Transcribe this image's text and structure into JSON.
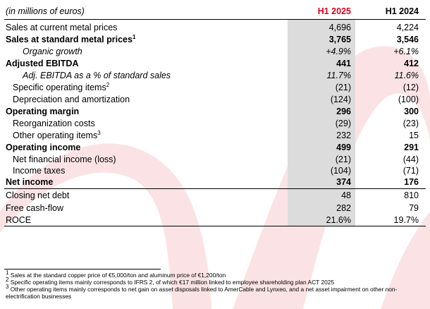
{
  "header": {
    "unit_label": "(in millions of euros)",
    "col1": "H1 2025",
    "col2": "H1 2024"
  },
  "rows": [
    {
      "label": "Sales at current metal prices",
      "sup": "",
      "v1": "4,696",
      "v2": "4,224"
    },
    {
      "label": "Sales at standard metal prices",
      "sup": "1",
      "v1": "3,765",
      "v2": "3,546"
    },
    {
      "label": "Organic growth",
      "sup": "",
      "v1": "+4.9%",
      "v2": "+6.1%"
    },
    {
      "label": "Adjusted EBITDA",
      "sup": "",
      "v1": "441",
      "v2": "412"
    },
    {
      "label": "Adj. EBITDA as a % of standard sales",
      "sup": "",
      "v1": "11.7%",
      "v2": "11.6%"
    },
    {
      "label": "Specific operating items",
      "sup": "2",
      "v1": "(21)",
      "v2": "(12)"
    },
    {
      "label": "Depreciation and amortization",
      "sup": "",
      "v1": "(124)",
      "v2": "(100)"
    },
    {
      "label": "Operating margin",
      "sup": "",
      "v1": "296",
      "v2": "300"
    },
    {
      "label": "Reorganization costs",
      "sup": "",
      "v1": "(29)",
      "v2": "(23)"
    },
    {
      "label": "Other operating items",
      "sup": "3",
      "v1": "232",
      "v2": "15"
    },
    {
      "label": "Operating income",
      "sup": "",
      "v1": "499",
      "v2": "291"
    },
    {
      "label": "Net financial income (loss)",
      "sup": "",
      "v1": "(21)",
      "v2": "(44)"
    },
    {
      "label": "Income taxes",
      "sup": "",
      "v1": "(104)",
      "v2": "(71)"
    },
    {
      "label": "Net income",
      "sup": "",
      "v1": "374",
      "v2": "176"
    },
    {
      "label": "Closing net debt",
      "sup": "",
      "v1": "48",
      "v2": "810"
    },
    {
      "label": "Free cash-flow",
      "sup": "",
      "v1": "282",
      "v2": "79"
    },
    {
      "label": "ROCE",
      "sup": "",
      "v1": "21.6%",
      "v2": "19.7%"
    }
  ],
  "footnotes": [
    {
      "mark": "1",
      "text": "Sales at the standard copper price of €5,000/ton and aluminum price of €1,200/ton"
    },
    {
      "mark": "2",
      "text": "Specific operating items mainly corresponds to IFRS 2, of which €17 million linked to employee shareholding plan ACT 2025"
    },
    {
      "mark": "3",
      "text": "Other operating items mainly corresponds to net gain on asset disposals linked to AmerCable and Lynxeo, and a net asset impairment on other non-electrification businesses"
    }
  ],
  "colors": {
    "accent_red": "#e2001a",
    "highlight_column": "#dcdcdc",
    "background_swoosh": "#fbe3e5"
  }
}
